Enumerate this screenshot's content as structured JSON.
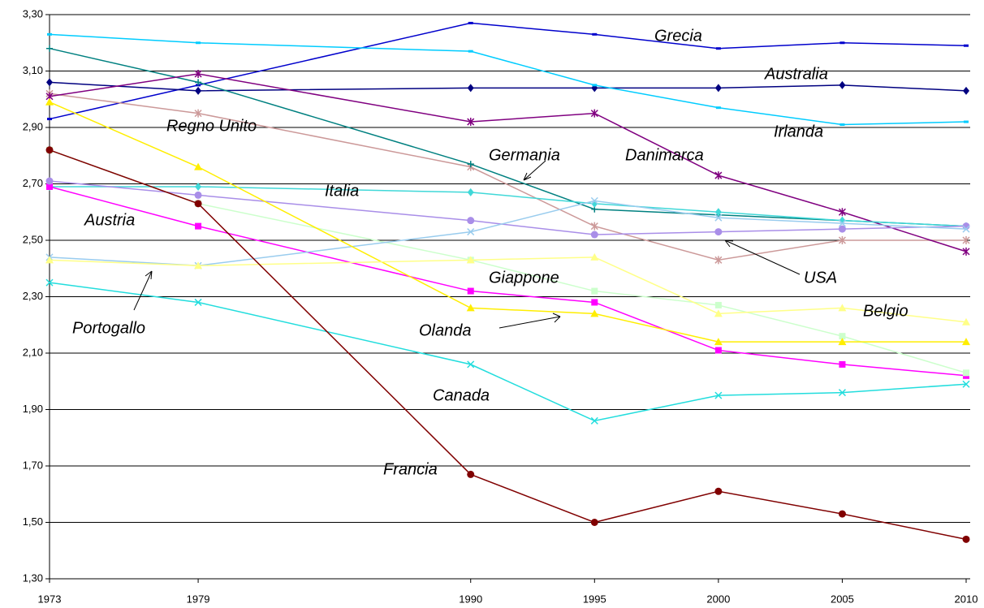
{
  "chart_data": {
    "type": "line",
    "x": [
      1973,
      1979,
      1990,
      1995,
      2000,
      2005,
      2010
    ],
    "xlim": [
      1973,
      2010
    ],
    "xticks": [
      1973,
      1979,
      1990,
      1995,
      2000,
      2005,
      2010
    ],
    "ylim": [
      1.3,
      3.3
    ],
    "yticks": [
      {
        "value": 1.3,
        "label": "1,30"
      },
      {
        "value": 1.5,
        "label": "1,50"
      },
      {
        "value": 1.7,
        "label": "1,70"
      },
      {
        "value": 1.9,
        "label": "1,90"
      },
      {
        "value": 2.1,
        "label": "2,10"
      },
      {
        "value": 2.3,
        "label": "2,30"
      },
      {
        "value": 2.5,
        "label": "2,50"
      },
      {
        "value": 2.7,
        "label": "2,70"
      },
      {
        "value": 2.9,
        "label": "2,90"
      },
      {
        "value": 3.1,
        "label": "3,10"
      },
      {
        "value": 3.3,
        "label": "3,30"
      }
    ],
    "grid": true,
    "series": [
      {
        "name": "Grecia",
        "color": "#0000cc",
        "marker": "dash",
        "values": [
          2.93,
          3.05,
          3.27,
          3.23,
          3.18,
          3.2,
          3.19
        ]
      },
      {
        "name": "Australia",
        "color": "#000080",
        "marker": "diamond",
        "values": [
          3.06,
          3.03,
          3.04,
          3.04,
          3.04,
          3.05,
          3.03
        ]
      },
      {
        "name": "Irlanda",
        "color": "#00ccff",
        "marker": "dash",
        "values": [
          3.23,
          3.2,
          3.17,
          3.05,
          2.97,
          2.91,
          2.92
        ]
      },
      {
        "name": "Regno Unito",
        "color": "#cc9999",
        "marker": "star",
        "values": [
          3.02,
          2.95,
          2.76,
          2.55,
          2.43,
          2.5,
          2.5
        ]
      },
      {
        "name": "Germania",
        "color": "#008080",
        "marker": "plus",
        "values": [
          3.18,
          3.06,
          2.77,
          2.61,
          2.59,
          2.57,
          2.55
        ]
      },
      {
        "name": "Danimarca",
        "color": "#800080",
        "marker": "star",
        "values": [
          3.01,
          3.09,
          2.92,
          2.95,
          2.73,
          2.6,
          2.46
        ]
      },
      {
        "name": "Italia",
        "color": "#40d8d8",
        "marker": "diamond",
        "values": [
          2.69,
          2.69,
          2.67,
          2.63,
          2.6,
          2.57,
          2.55
        ]
      },
      {
        "name": "Austria",
        "color": "#ff00ff",
        "marker": "square",
        "values": [
          2.69,
          2.55,
          2.32,
          2.28,
          2.11,
          2.06,
          2.02
        ]
      },
      {
        "name": "USA",
        "color": "#a98ee8",
        "marker": "circle",
        "values": [
          2.71,
          2.66,
          2.57,
          2.52,
          2.53,
          2.54,
          2.55
        ]
      },
      {
        "name": "Giappone",
        "color": "#ccffcc",
        "marker": "square",
        "values": [
          2.82,
          2.63,
          2.43,
          2.32,
          2.27,
          2.16,
          2.03
        ]
      },
      {
        "name": "Portogallo",
        "color": "#99ccee",
        "marker": "cross",
        "values": [
          2.44,
          2.41,
          2.53,
          2.64,
          2.58,
          2.56,
          2.54
        ]
      },
      {
        "name": "Olanda",
        "color": "#ffee00",
        "marker": "triangle",
        "values": [
          2.99,
          2.76,
          2.26,
          2.24,
          2.14,
          2.14,
          2.14
        ]
      },
      {
        "name": "Belgio",
        "color": "#ffff88",
        "marker": "triangle",
        "values": [
          2.43,
          2.41,
          2.43,
          2.44,
          2.24,
          2.26,
          2.21
        ]
      },
      {
        "name": "Canada",
        "color": "#22dddd",
        "marker": "cross",
        "values": [
          2.35,
          2.28,
          2.06,
          1.86,
          1.95,
          1.96,
          1.99
        ]
      },
      {
        "name": "Francia",
        "color": "#800000",
        "marker": "circle",
        "values": [
          2.82,
          2.63,
          1.67,
          1.5,
          1.61,
          1.53,
          1.44
        ]
      }
    ]
  }
}
